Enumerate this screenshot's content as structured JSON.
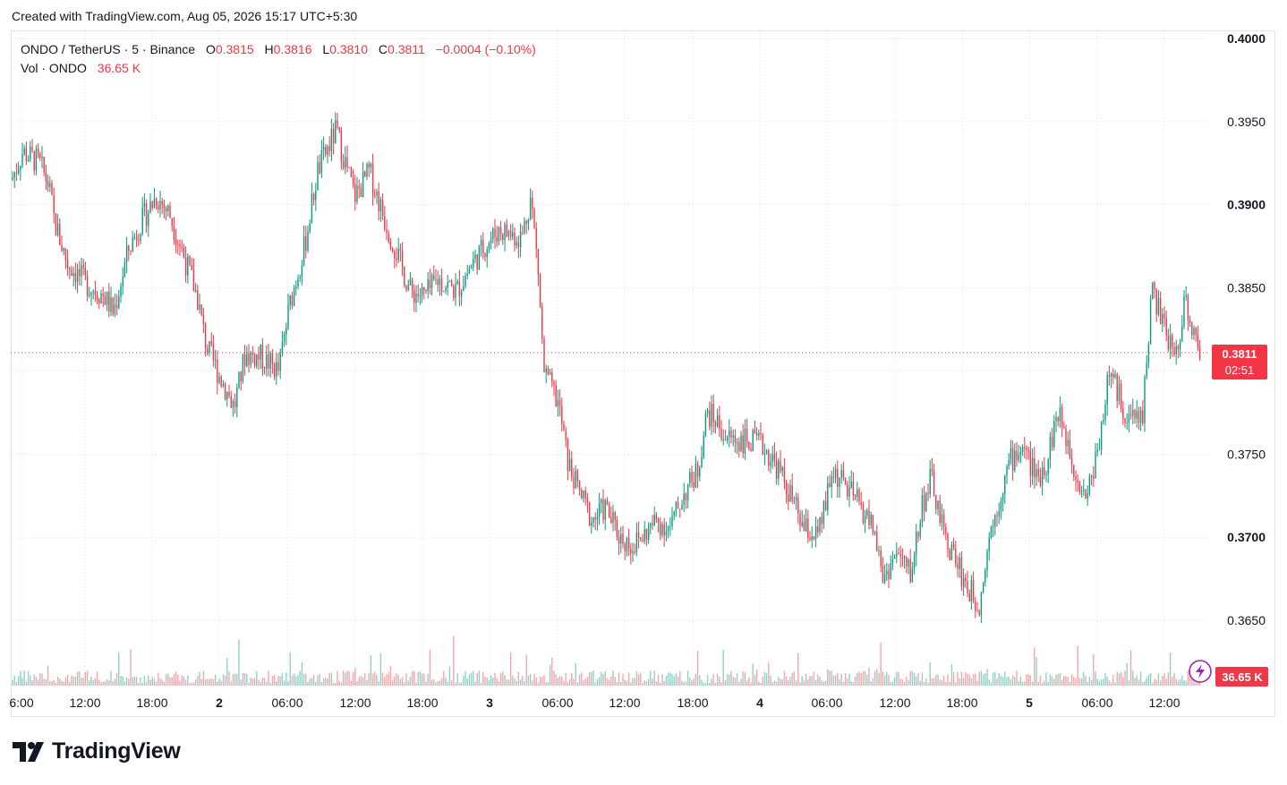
{
  "header": {
    "caption": "Created with TradingView.com, Aug 05, 2026 15:17 UTC+5:30"
  },
  "legend": {
    "symbol": "ONDO / TetherUS · 5 · Binance",
    "open_label": "O",
    "open": "0.3815",
    "high_label": "H",
    "high": "0.3816",
    "low_label": "L",
    "low": "0.3810",
    "close_label": "C",
    "close": "0.3811",
    "change": "−0.0004 (−0.10%)",
    "volume_label": "Vol · ONDO",
    "volume": "36.65 K"
  },
  "colors": {
    "up": "#089981",
    "down": "#f23645",
    "grid": "#e9ecf1",
    "text": "#131722",
    "frame": "#e0e3eb"
  },
  "icons": {
    "alert": "lightning-icon",
    "logo": "tradingview-logo-icon"
  },
  "price_tag": {
    "price": "0.3811",
    "countdown": "02:51"
  },
  "volume_tag": "36.65 K",
  "brand": "TradingView",
  "chart_data": {
    "type": "candlestick",
    "symbol": "ONDO / TetherUS",
    "interval": "5",
    "exchange": "Binance",
    "ylim": [
      0.3622,
      0.4003
    ],
    "y_ticks": [
      "0.4000",
      "0.3950",
      "0.3900",
      "0.3850",
      "0.3800",
      "0.3750",
      "0.3700",
      "0.3650"
    ],
    "x_ticks": [
      "6:00",
      "12:00",
      "18:00",
      "2",
      "06:00",
      "12:00",
      "18:00",
      "3",
      "06:00",
      "12:00",
      "18:00",
      "4",
      "06:00",
      "12:00",
      "18:00",
      "5",
      "06:00",
      "12:00"
    ],
    "grid": true,
    "last_price": 0.3811,
    "series": [
      {
        "name": "ONDO / TetherUS",
        "approx_close": [
          [
            0,
            0.3915
          ],
          [
            0.6,
            0.3932
          ],
          [
            1.5,
            0.3925
          ],
          [
            2,
            0.3912
          ],
          [
            2.3,
            0.389
          ],
          [
            3,
            0.3865
          ],
          [
            4,
            0.3853
          ],
          [
            5,
            0.3845
          ],
          [
            5.5,
            0.3835
          ],
          [
            6.3,
            0.3873
          ],
          [
            7,
            0.389
          ],
          [
            7.8,
            0.3905
          ],
          [
            8.5,
            0.3895
          ],
          [
            9.2,
            0.3872
          ],
          [
            10,
            0.3845
          ],
          [
            10.5,
            0.3815
          ],
          [
            11.3,
            0.3795
          ],
          [
            12,
            0.3778
          ],
          [
            12.6,
            0.381
          ],
          [
            13.5,
            0.3808
          ],
          [
            14.4,
            0.38
          ],
          [
            15,
            0.384
          ],
          [
            15.8,
            0.3875
          ],
          [
            16.5,
            0.392
          ],
          [
            17.5,
            0.3945
          ],
          [
            18.5,
            0.3905
          ],
          [
            19.3,
            0.392
          ],
          [
            20,
            0.3895
          ],
          [
            20.8,
            0.387
          ],
          [
            21.5,
            0.3848
          ],
          [
            22.3,
            0.3845
          ],
          [
            23,
            0.3855
          ],
          [
            24,
            0.3848
          ],
          [
            24.7,
            0.3862
          ],
          [
            25.5,
            0.3875
          ],
          [
            26.3,
            0.3885
          ],
          [
            27.5,
            0.388
          ],
          [
            28,
            0.3905
          ],
          [
            28.4,
            0.386
          ],
          [
            28.7,
            0.38
          ],
          [
            29.5,
            0.378
          ],
          [
            30,
            0.3745
          ],
          [
            30.5,
            0.373
          ],
          [
            31.3,
            0.371
          ],
          [
            32,
            0.3718
          ],
          [
            32.8,
            0.37
          ],
          [
            33.5,
            0.3695
          ],
          [
            34,
            0.37
          ],
          [
            34.8,
            0.371
          ],
          [
            35.5,
            0.3705
          ],
          [
            36.2,
            0.3725
          ],
          [
            37,
            0.374
          ],
          [
            37.5,
            0.3775
          ],
          [
            38,
            0.377
          ],
          [
            38.5,
            0.376
          ],
          [
            39.5,
            0.3758
          ],
          [
            40.5,
            0.3755
          ],
          [
            41.3,
            0.3742
          ],
          [
            42,
            0.3725
          ],
          [
            42.7,
            0.3705
          ],
          [
            43.5,
            0.37
          ],
          [
            44.3,
            0.374
          ],
          [
            45,
            0.373
          ],
          [
            45.7,
            0.372
          ],
          [
            46.5,
            0.3705
          ],
          [
            47,
            0.3675
          ],
          [
            47.7,
            0.369
          ],
          [
            48.5,
            0.3678
          ],
          [
            49.1,
            0.372
          ],
          [
            49.6,
            0.3735
          ],
          [
            50.3,
            0.37
          ],
          [
            51,
            0.3685
          ],
          [
            51.5,
            0.367
          ],
          [
            52.2,
            0.366
          ],
          [
            52.7,
            0.37
          ],
          [
            53.2,
            0.372
          ],
          [
            53.8,
            0.3745
          ],
          [
            54.5,
            0.3755
          ],
          [
            55.3,
            0.3735
          ],
          [
            55.8,
            0.3745
          ],
          [
            56.4,
            0.3775
          ],
          [
            56.9,
            0.376
          ],
          [
            57.5,
            0.3735
          ],
          [
            58,
            0.3725
          ],
          [
            58.6,
            0.3755
          ],
          [
            59.2,
            0.38
          ],
          [
            59.7,
            0.3785
          ],
          [
            60.3,
            0.377
          ],
          [
            61,
            0.3775
          ],
          [
            61.5,
            0.385
          ],
          [
            61.9,
            0.3835
          ],
          [
            62.3,
            0.382
          ],
          [
            62.8,
            0.381
          ],
          [
            63.3,
            0.3845
          ],
          [
            63.7,
            0.3822
          ],
          [
            64.1,
            0.3812
          ]
        ]
      }
    ]
  }
}
